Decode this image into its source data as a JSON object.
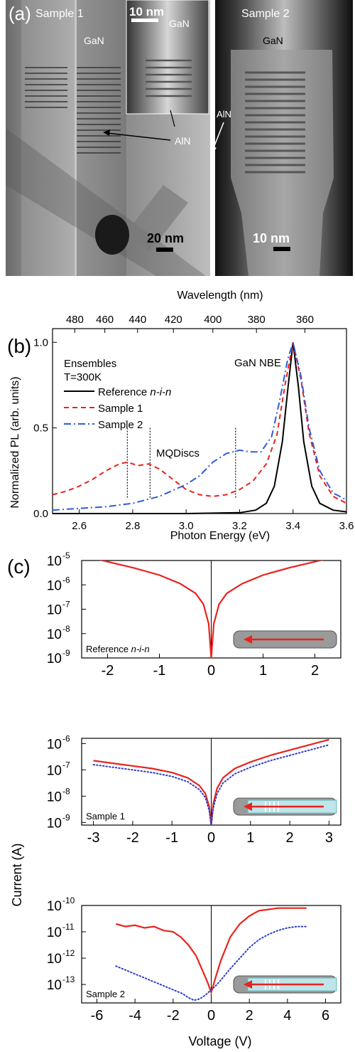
{
  "panel_a": {
    "label": "(a)",
    "img1_title": "Sample 1",
    "img1_gan": "GaN",
    "img1_aln": "AlN",
    "img1_scale": "20 nm",
    "inset_scale": "10 nm",
    "inset_gan": "GaN",
    "img2_title": "Sample 2",
    "img2_gan": "GaN",
    "img2_aln": "AlN",
    "img2_scale": "10 nm"
  },
  "chart_data": [
    {
      "type": "line",
      "panel_label": "(b)",
      "top_axis_label": "Wavelength (nm)",
      "top_ticks": [
        480,
        460,
        440,
        420,
        400,
        380,
        360
      ],
      "xlabel": "Photon Energy (eV)",
      "ylabel": "Normalized PL (arb. units)",
      "xlim": [
        2.5,
        3.6
      ],
      "ylim": [
        0,
        1.08
      ],
      "xticks": [
        "2.6",
        "2.8",
        "3.0",
        "3.2",
        "3.4",
        "3.6"
      ],
      "yticks": [
        "0.0",
        "0.5",
        "1.0"
      ],
      "annotation_ensembles": "Ensembles",
      "annotation_temp": "T=300K",
      "annotation_nbe": "GaN NBE",
      "annotation_mqd": "MQDiscs",
      "legend_prefix": "Reference ",
      "legend_ital": "n-i-n",
      "mqd_marker_x": [
        2.78,
        2.865,
        3.185
      ],
      "series": [
        {
          "name": "Reference n-i-n",
          "color": "#000000",
          "x": [
            2.5,
            3.0,
            3.2,
            3.26,
            3.3,
            3.33,
            3.36,
            3.38,
            3.4,
            3.42,
            3.44,
            3.47,
            3.5,
            3.55,
            3.6
          ],
          "y": [
            0.0,
            0.0,
            0.005,
            0.02,
            0.06,
            0.16,
            0.42,
            0.72,
            1.0,
            0.74,
            0.42,
            0.16,
            0.06,
            0.02,
            0.01
          ]
        },
        {
          "name": "Sample 1",
          "color": "#e8231d",
          "x": [
            2.5,
            2.55,
            2.6,
            2.65,
            2.7,
            2.75,
            2.78,
            2.82,
            2.86,
            2.9,
            2.95,
            3.0,
            3.05,
            3.1,
            3.15,
            3.2,
            3.25,
            3.3,
            3.34,
            3.37,
            3.4,
            3.43,
            3.46,
            3.5,
            3.55,
            3.6
          ],
          "y": [
            0.11,
            0.13,
            0.16,
            0.2,
            0.25,
            0.29,
            0.3,
            0.28,
            0.29,
            0.26,
            0.2,
            0.14,
            0.11,
            0.1,
            0.11,
            0.14,
            0.19,
            0.29,
            0.46,
            0.75,
            1.0,
            0.78,
            0.47,
            0.22,
            0.1,
            0.06
          ]
        },
        {
          "name": "Sample 2",
          "color": "#2e5bd8",
          "x": [
            2.5,
            2.6,
            2.7,
            2.8,
            2.9,
            3.0,
            3.05,
            3.1,
            3.15,
            3.2,
            3.24,
            3.28,
            3.32,
            3.35,
            3.38,
            3.4,
            3.43,
            3.46,
            3.5,
            3.55,
            3.6
          ],
          "y": [
            0.02,
            0.03,
            0.04,
            0.06,
            0.1,
            0.17,
            0.22,
            0.3,
            0.35,
            0.37,
            0.36,
            0.36,
            0.45,
            0.66,
            0.9,
            1.0,
            0.8,
            0.5,
            0.25,
            0.12,
            0.08
          ]
        }
      ]
    },
    {
      "type": "line",
      "panel_label": "(c)",
      "inset_label_prefix": "Reference ",
      "inset_label_ital": "n-i-n",
      "xlim": [
        -2.5,
        2.5
      ],
      "xticks": [
        "-2",
        "-1",
        "0",
        "1",
        "2"
      ],
      "ylim": [
        -9,
        -5
      ],
      "ytick_exp": [
        "-5",
        "-6",
        "-7",
        "-8",
        "-9"
      ],
      "series": [
        {
          "name": "",
          "color": "#e8231d",
          "x": [
            -2.5,
            -2,
            -1.5,
            -1,
            -0.6,
            -0.3,
            -0.15,
            -0.05,
            0,
            0.05,
            0.15,
            0.3,
            0.6,
            1,
            1.5,
            2,
            2.5
          ],
          "y": [
            -4.8,
            -5.05,
            -5.3,
            -5.6,
            -5.95,
            -6.35,
            -6.8,
            -7.6,
            -9.0,
            -7.6,
            -6.8,
            -6.35,
            -5.95,
            -5.6,
            -5.3,
            -5.05,
            -4.8
          ]
        }
      ]
    },
    {
      "type": "line",
      "ylabel": "Current (A)",
      "inset_label": "Sample 1",
      "xlim": [
        -3.3,
        3.3
      ],
      "xticks": [
        "-3",
        "-2",
        "-1",
        "0",
        "1",
        "2",
        "3"
      ],
      "ylim": [
        -9.1,
        -5.8
      ],
      "ytick_exp": [
        "-6",
        "-7",
        "-8",
        "-9"
      ],
      "series": [
        {
          "name": "",
          "color": "#e8231d",
          "dash": false,
          "x": [
            -3,
            -2.5,
            -2,
            -1.5,
            -1,
            -0.6,
            -0.3,
            -0.15,
            -0.05,
            0,
            0.05,
            0.15,
            0.3,
            0.6,
            1,
            1.5,
            2,
            2.5,
            3
          ],
          "y": [
            -6.65,
            -6.75,
            -6.85,
            -6.95,
            -7.1,
            -7.3,
            -7.6,
            -7.9,
            -8.4,
            -9.1,
            -8.3,
            -7.7,
            -7.3,
            -6.95,
            -6.7,
            -6.45,
            -6.25,
            -6.05,
            -5.85
          ]
        },
        {
          "name": "",
          "color": "#2e3fc6",
          "dash": true,
          "x": [
            -3,
            -2.5,
            -2,
            -1.5,
            -1,
            -0.6,
            -0.3,
            -0.15,
            -0.05,
            0,
            0.05,
            0.15,
            0.3,
            0.6,
            1,
            1.5,
            2,
            2.5,
            3
          ],
          "y": [
            -6.8,
            -6.9,
            -7.0,
            -7.1,
            -7.25,
            -7.45,
            -7.75,
            -8.05,
            -8.55,
            -9.1,
            -8.45,
            -7.9,
            -7.5,
            -7.15,
            -6.9,
            -6.65,
            -6.45,
            -6.25,
            -6.05
          ]
        }
      ]
    },
    {
      "type": "line",
      "xlabel": "Voltage (V)",
      "inset_label": "Sample 2",
      "xlim": [
        -6.8,
        6.8
      ],
      "xticks": [
        "-6",
        "-4",
        "-2",
        "0",
        "2",
        "4",
        "6"
      ],
      "ylim": [
        -13.7,
        -10
      ],
      "ytick_exp": [
        "-10",
        "-11",
        "-12",
        "-13"
      ],
      "series": [
        {
          "name": "",
          "color": "#e8231d",
          "dash": false,
          "x": [
            -5,
            -4.5,
            -4,
            -3.5,
            -3,
            -2.5,
            -2,
            -1.6,
            -1.2,
            -0.8,
            -0.5,
            -0.2,
            0,
            0.2,
            0.5,
            1,
            1.5,
            2,
            2.5,
            3,
            3.5,
            4,
            4.5,
            5
          ],
          "y": [
            -10.7,
            -10.8,
            -10.75,
            -10.85,
            -10.8,
            -10.95,
            -11.0,
            -11.2,
            -11.5,
            -11.9,
            -12.4,
            -12.9,
            -13.3,
            -12.8,
            -12.1,
            -11.2,
            -10.7,
            -10.4,
            -10.2,
            -10.15,
            -10.1,
            -10.1,
            -10.1,
            -10.1
          ]
        },
        {
          "name": "",
          "color": "#2e3fc6",
          "dash": true,
          "x": [
            -5,
            -4.5,
            -4,
            -3.5,
            -3,
            -2.5,
            -2,
            -1.5,
            -1.2,
            -0.9,
            -0.6,
            -0.3,
            0,
            0.3,
            0.6,
            1,
            1.5,
            2,
            2.5,
            3,
            3.5,
            4,
            4.5,
            5
          ],
          "y": [
            -12.3,
            -12.45,
            -12.6,
            -12.75,
            -12.9,
            -13.05,
            -13.2,
            -13.35,
            -13.5,
            -13.6,
            -13.55,
            -13.4,
            -13.2,
            -13.0,
            -12.75,
            -12.4,
            -12.0,
            -11.6,
            -11.3,
            -11.1,
            -10.95,
            -10.85,
            -10.8,
            -10.8
          ]
        }
      ]
    }
  ]
}
